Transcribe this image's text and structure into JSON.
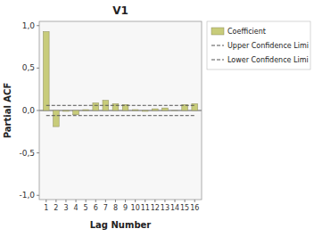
{
  "chart_data": {
    "type": "bar",
    "title": "V1",
    "x_label": "Lag Number",
    "y_label": "Partial ACF",
    "x": [
      1,
      2,
      3,
      4,
      5,
      6,
      7,
      8,
      9,
      10,
      11,
      12,
      13,
      14,
      15,
      16
    ],
    "series": [
      {
        "name": "Coefficient",
        "type": "bar",
        "color": "#c8cc7a",
        "values": [
          0.93,
          -0.19,
          -0.01,
          -0.05,
          0.01,
          0.09,
          0.12,
          0.08,
          0.07,
          0.01,
          -0.01,
          0.02,
          0.03,
          0.0,
          0.07,
          0.08
        ]
      },
      {
        "name": "Upper Confidence Limi",
        "type": "line",
        "color": "#555555",
        "line_style": "dashed",
        "values": [
          0.06,
          0.06,
          0.06,
          0.06,
          0.06,
          0.06,
          0.06,
          0.06,
          0.06,
          0.06,
          0.06,
          0.06,
          0.06,
          0.06,
          0.06,
          0.06
        ]
      },
      {
        "name": "Lower Confidence Limi",
        "type": "line",
        "color": "#555555",
        "line_style": "dashed",
        "values": [
          -0.06,
          -0.06,
          -0.06,
          -0.06,
          -0.06,
          -0.06,
          -0.06,
          -0.06,
          -0.06,
          -0.06,
          -0.06,
          -0.06,
          -0.06,
          -0.06,
          -0.06,
          -0.06
        ]
      }
    ],
    "xlim": [
      0.3,
      16.7
    ],
    "xticks": [
      1,
      2,
      3,
      4,
      5,
      6,
      7,
      8,
      9,
      10,
      11,
      12,
      13,
      14,
      15,
      16
    ],
    "ylim": [
      -1.05,
      1.05
    ],
    "yticks": [
      {
        "value": -1.0,
        "label": "-1,0"
      },
      {
        "value": -0.5,
        "label": "-0,5"
      },
      {
        "value": 0.0,
        "label": "0,0"
      },
      {
        "value": 0.5,
        "label": "0,5"
      },
      {
        "value": 1.0,
        "label": "1,0"
      }
    ],
    "grid": false,
    "legend": "right"
  }
}
